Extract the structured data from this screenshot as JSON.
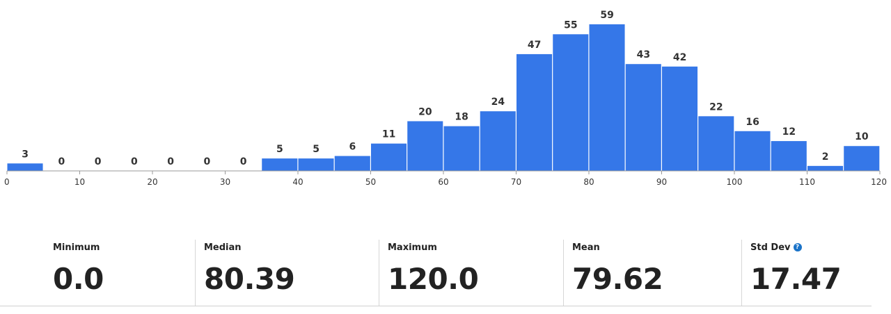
{
  "chart_data": {
    "type": "bar",
    "bins": [
      {
        "start": 0,
        "end": 5,
        "value": 3
      },
      {
        "start": 5,
        "end": 10,
        "value": 0
      },
      {
        "start": 10,
        "end": 15,
        "value": 0
      },
      {
        "start": 15,
        "end": 20,
        "value": 0
      },
      {
        "start": 20,
        "end": 25,
        "value": 0
      },
      {
        "start": 25,
        "end": 30,
        "value": 0
      },
      {
        "start": 30,
        "end": 35,
        "value": 0
      },
      {
        "start": 35,
        "end": 40,
        "value": 5
      },
      {
        "start": 40,
        "end": 45,
        "value": 5
      },
      {
        "start": 45,
        "end": 50,
        "value": 6
      },
      {
        "start": 50,
        "end": 55,
        "value": 11
      },
      {
        "start": 55,
        "end": 60,
        "value": 20
      },
      {
        "start": 60,
        "end": 65,
        "value": 18
      },
      {
        "start": 65,
        "end": 70,
        "value": 24
      },
      {
        "start": 70,
        "end": 75,
        "value": 47
      },
      {
        "start": 75,
        "end": 80,
        "value": 55
      },
      {
        "start": 80,
        "end": 85,
        "value": 59
      },
      {
        "start": 85,
        "end": 90,
        "value": 43
      },
      {
        "start": 90,
        "end": 95,
        "value": 42
      },
      {
        "start": 95,
        "end": 100,
        "value": 22
      },
      {
        "start": 100,
        "end": 105,
        "value": 16
      },
      {
        "start": 105,
        "end": 110,
        "value": 12
      },
      {
        "start": 110,
        "end": 115,
        "value": 2
      },
      {
        "start": 115,
        "end": 120,
        "value": 10
      }
    ],
    "xticks": [
      "0",
      "10",
      "20",
      "30",
      "40",
      "50",
      "60",
      "70",
      "80",
      "90",
      "100",
      "110",
      "120"
    ],
    "xlim": [
      0,
      120
    ],
    "ylim": [
      0,
      59
    ],
    "grid": false,
    "bar_color": "#3577e8",
    "title": "",
    "xlabel": "",
    "ylabel": ""
  },
  "stats": [
    {
      "label": "Minimum",
      "value": "0.0"
    },
    {
      "label": "Median",
      "value": "80.39"
    },
    {
      "label": "Maximum",
      "value": "120.0"
    },
    {
      "label": "Mean",
      "value": "79.62"
    },
    {
      "label": "Std Dev",
      "value": "17.47",
      "icon": "help-icon"
    }
  ]
}
